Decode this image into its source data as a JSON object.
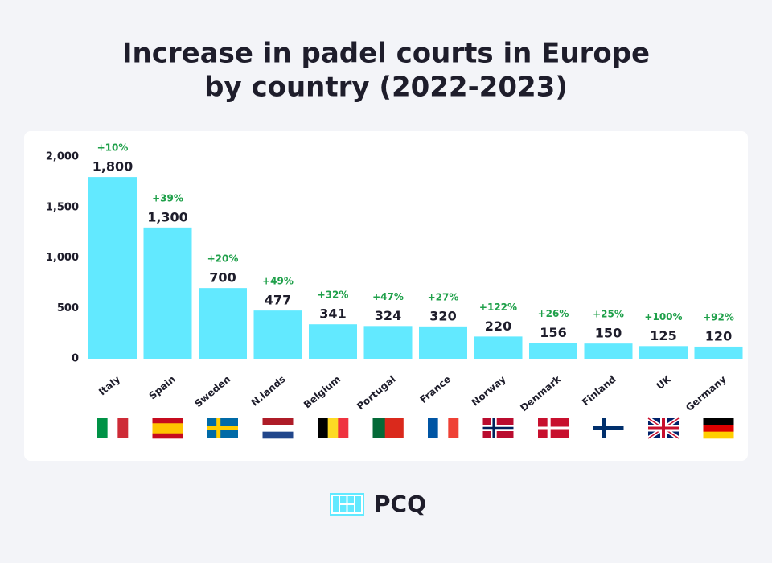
{
  "chart_data": {
    "type": "bar",
    "title": [
      "Increase in padel courts in Europe",
      "by country (2022-2023)"
    ],
    "categories": [
      "Italy",
      "Spain",
      "Sweden",
      "N.lands",
      "Belgium",
      "Portugal",
      "France",
      "Norway",
      "Denmark",
      "Finland",
      "UK",
      "Germany"
    ],
    "values": [
      1800,
      1300,
      700,
      477,
      341,
      324,
      320,
      220,
      156,
      150,
      125,
      120
    ],
    "value_labels": [
      "1,800",
      "1,300",
      "700",
      "477",
      "341",
      "324",
      "320",
      "220",
      "156",
      "150",
      "125",
      "120"
    ],
    "increase_labels": [
      "+10%",
      "+39%",
      "+20%",
      "+49%",
      "+32%",
      "+47%",
      "+27%",
      "+122%",
      "+26%",
      "+25%",
      "+100%",
      "+92%"
    ],
    "color": "#62e9ff",
    "ylim": [
      0,
      2000
    ],
    "yticks": [
      0,
      500,
      {
        "value": 1000,
        "label": "1,000"
      },
      {
        "value": 1500,
        "label": "1,500"
      },
      {
        "value": 2000,
        "label": "2,000"
      }
    ],
    "grid": false
  },
  "logo": {
    "text": "PCQ"
  }
}
